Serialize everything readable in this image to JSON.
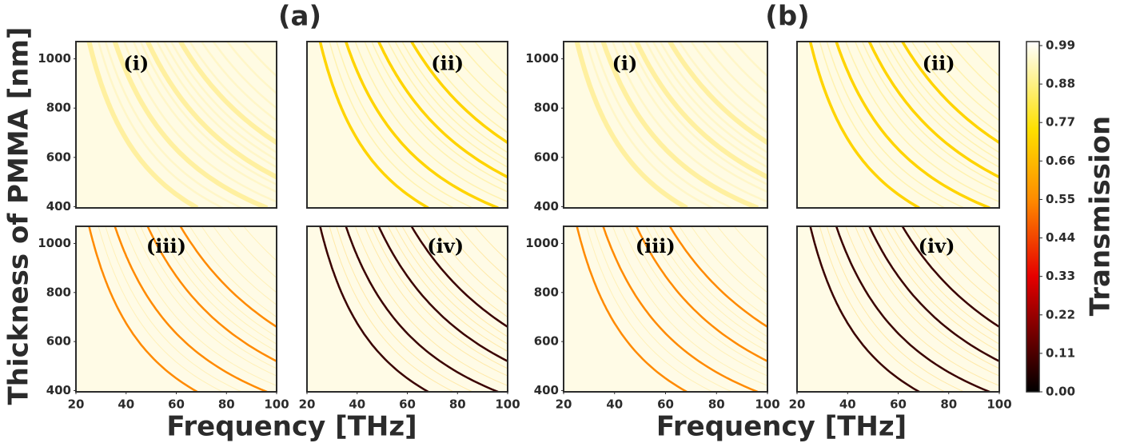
{
  "chart_data": {
    "type": "heatmap",
    "ylabel": "Thickness of PMMA [nm]",
    "groups": [
      {
        "label": "(a)",
        "xlabel": "Frequency [THz]",
        "panels": [
          "(i)",
          "(ii)",
          "(iii)",
          "(iv)"
        ]
      },
      {
        "label": "(b)",
        "xlabel": "Frequency [THz]",
        "panels": [
          "(i)",
          "(ii)",
          "(iii)",
          "(iv)"
        ]
      }
    ],
    "xlim": [
      20,
      100
    ],
    "xticks": [
      20,
      40,
      60,
      80,
      100
    ],
    "ylim": [
      395,
      1070
    ],
    "yticks": [
      400,
      600,
      800,
      1000
    ],
    "colorbar": {
      "label": "Transmission",
      "lim": [
        0,
        0.99
      ],
      "ticks": [
        {
          "value": 0,
          "label": "0.00"
        },
        0.11,
        0.22,
        0.33,
        0.44,
        0.55,
        0.66,
        0.77,
        0.88,
        0.99
      ]
    }
  }
}
